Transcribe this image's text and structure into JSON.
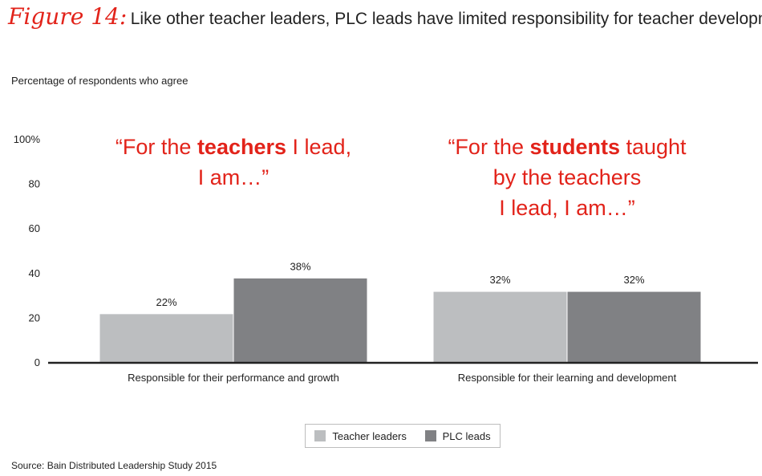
{
  "header": {
    "figure_label": "Figure 14:",
    "title": "Like other teacher leaders, PLC leads have limited responsibility for teacher development"
  },
  "colors": {
    "accent": "#e2231a",
    "teacher_leaders": "#bcbec0",
    "plc_leads": "#808184",
    "axis": "#222222"
  },
  "source": "Source: Bain Distributed Leadership Study 2015",
  "chart_data": {
    "type": "bar",
    "title": "",
    "subtitle": "Percentage of respondents who agree",
    "ylim": [
      0,
      100
    ],
    "y_ticks": [
      {
        "value": 0,
        "label": "0"
      },
      {
        "value": 20,
        "label": "20"
      },
      {
        "value": 40,
        "label": "40"
      },
      {
        "value": 60,
        "label": "60"
      },
      {
        "value": 80,
        "label": "80"
      },
      {
        "value": 100,
        "label": "100%"
      }
    ],
    "grid": false,
    "legend_position": "bottom-center",
    "categories": [
      "Responsible for their performance and growth",
      "Responsible for their learning and development"
    ],
    "series": [
      {
        "name": "Teacher leaders",
        "values": [
          22,
          32
        ],
        "labels": [
          "22%",
          "32%"
        ]
      },
      {
        "name": "PLC leads",
        "values": [
          38,
          32
        ],
        "labels": [
          "38%",
          "32%"
        ]
      }
    ],
    "annotations": [
      {
        "lines": [
          "“For the |teachers| I lead,",
          "I am…”"
        ]
      },
      {
        "lines": [
          "“For the |students| taught",
          "by the teachers",
          "I lead, I am…”"
        ]
      }
    ]
  }
}
